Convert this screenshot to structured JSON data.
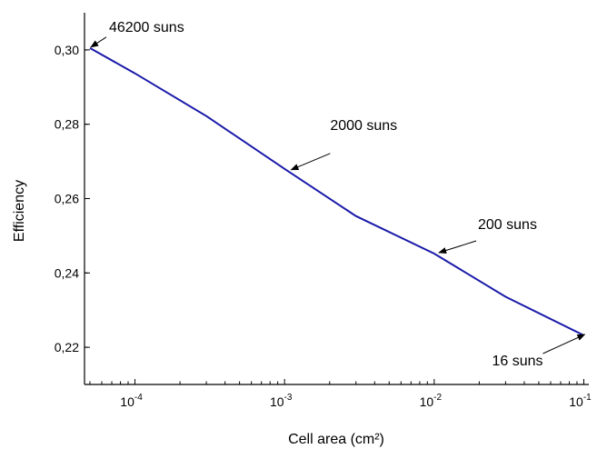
{
  "chart_data": {
    "type": "line",
    "xlabel": "Cell area (cm²)",
    "ylabel": "Efficiency",
    "xscale": "log",
    "xlim": [
      4.6e-05,
      0.108
    ],
    "ylim": [
      0.21,
      0.31
    ],
    "x_ticks": [
      {
        "value": 0.0001,
        "base": "10",
        "exp": "-4"
      },
      {
        "value": 0.001,
        "base": "10",
        "exp": "-3"
      },
      {
        "value": 0.01,
        "base": "10",
        "exp": "-2"
      },
      {
        "value": 0.1,
        "base": "10",
        "exp": "-1"
      }
    ],
    "y_ticks": [
      {
        "value": 0.22,
        "label": "0,22"
      },
      {
        "value": 0.24,
        "label": "0,24"
      },
      {
        "value": 0.26,
        "label": "0,26"
      },
      {
        "value": 0.28,
        "label": "0,28"
      },
      {
        "value": 0.3,
        "label": "0,30"
      }
    ],
    "series": [
      {
        "color": "#1a1aaa",
        "x": [
          5e-05,
          0.0001,
          0.0003,
          0.001,
          0.003,
          0.01,
          0.03,
          0.1
        ],
        "y": [
          0.3005,
          0.2937,
          0.2822,
          0.268,
          0.2553,
          0.2452,
          0.2336,
          0.2232
        ]
      }
    ],
    "annotations": [
      {
        "text": "46200 suns",
        "x": 5e-05,
        "y": 0.3005
      },
      {
        "text": "2000 suns",
        "x": 0.00109,
        "y": 0.2675
      },
      {
        "text": "200 suns",
        "x": 0.0106,
        "y": 0.2452
      },
      {
        "text": "16 suns",
        "x": 0.1,
        "y": 0.2232
      }
    ],
    "grid": false
  }
}
